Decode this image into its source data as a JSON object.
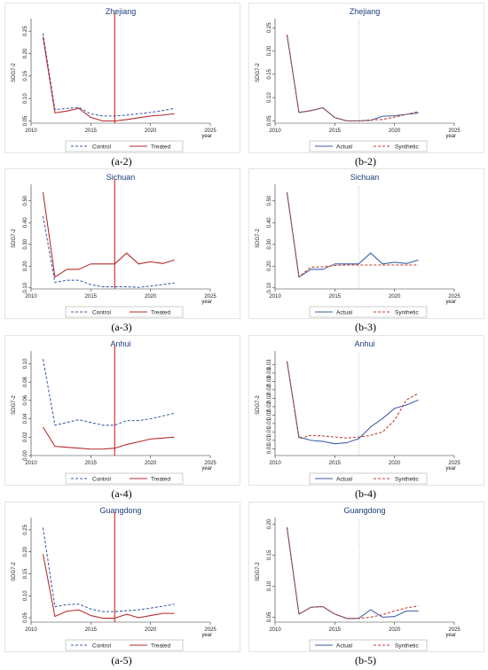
{
  "chart_data": [
    {
      "id": "a-2",
      "caption": "(a-2)",
      "type": "line",
      "title": "Zhejiang",
      "xlabel": "year",
      "ylabel": "SDG7-2",
      "xlim": [
        2010,
        2025
      ],
      "xticks": [
        2010,
        2015,
        2020,
        2025
      ],
      "ylim": [
        0.045,
        0.27
      ],
      "yticks": [
        0.05,
        0.1,
        0.15,
        0.2,
        0.25
      ],
      "ytick_labels": [
        "0.05",
        "0.10",
        "0.15",
        "0.20",
        "0.25"
      ],
      "intervention_year": 2017,
      "intervention_style": "solid-red",
      "x": [
        2011,
        2012,
        2013,
        2014,
        2015,
        2016,
        2017,
        2018,
        2019,
        2020,
        2021,
        2022
      ],
      "series": [
        {
          "name": "Control",
          "color": "#3a5ba8",
          "dash": true,
          "values": [
            0.245,
            0.075,
            0.078,
            0.08,
            0.066,
            0.061,
            0.061,
            0.063,
            0.066,
            0.069,
            0.073,
            0.078
          ]
        },
        {
          "name": "Treated",
          "color": "#b42828",
          "dash": false,
          "values": [
            0.237,
            0.068,
            0.072,
            0.078,
            0.058,
            0.05,
            0.05,
            0.053,
            0.057,
            0.061,
            0.063,
            0.066
          ]
        }
      ],
      "legend_position": "bottom"
    },
    {
      "id": "b-2",
      "caption": "(b-2)",
      "type": "line",
      "title": "Zhejiang",
      "xlabel": "year",
      "ylabel": "SDG7-2",
      "xlim": [
        2010,
        2025
      ],
      "xticks": [
        2010,
        2015,
        2020,
        2025
      ],
      "ylim": [
        0.045,
        0.262
      ],
      "yticks": [
        0.05,
        0.1,
        0.15,
        0.2,
        0.25
      ],
      "ytick_labels": [
        "0.05",
        "0.10",
        "0.15",
        "0.20",
        "0.25"
      ],
      "intervention_year": 2017,
      "intervention_style": "dotted-gray",
      "x": [
        2011,
        2012,
        2013,
        2014,
        2015,
        2016,
        2017,
        2018,
        2019,
        2020,
        2021,
        2022
      ],
      "series": [
        {
          "name": "Actual",
          "color": "#3a5ba8",
          "dash": false,
          "values": [
            0.235,
            0.068,
            0.072,
            0.078,
            0.057,
            0.05,
            0.05,
            0.051,
            0.06,
            0.061,
            0.064,
            0.067
          ]
        },
        {
          "name": "Synthetic",
          "color": "#c0392b",
          "dash": true,
          "values": [
            0.235,
            0.068,
            0.072,
            0.078,
            0.057,
            0.05,
            0.05,
            0.052,
            0.053,
            0.058,
            0.064,
            0.07
          ]
        }
      ],
      "legend_position": "bottom"
    },
    {
      "id": "a-3",
      "caption": "(a-3)",
      "type": "line",
      "title": "Sichuan",
      "xlabel": "year",
      "ylabel": "SDG7-2",
      "xlim": [
        2010,
        2025
      ],
      "xticks": [
        2010,
        2015,
        2020,
        2025
      ],
      "ylim": [
        0.095,
        0.56
      ],
      "yticks": [
        0.1,
        0.2,
        0.3,
        0.4,
        0.5
      ],
      "ytick_labels": [
        "0.10",
        "0.20",
        "0.30",
        "0.40",
        "0.50"
      ],
      "intervention_year": 2017,
      "intervention_style": "solid-red",
      "x": [
        2011,
        2012,
        2013,
        2014,
        2015,
        2016,
        2017,
        2018,
        2019,
        2020,
        2021,
        2022
      ],
      "series": [
        {
          "name": "Control",
          "color": "#3a5ba8",
          "dash": true,
          "values": [
            0.43,
            0.125,
            0.135,
            0.135,
            0.115,
            0.105,
            0.105,
            0.105,
            0.102,
            0.108,
            0.115,
            0.122
          ]
        },
        {
          "name": "Treated",
          "color": "#b42828",
          "dash": false,
          "values": [
            0.54,
            0.15,
            0.185,
            0.185,
            0.21,
            0.21,
            0.21,
            0.26,
            0.21,
            0.22,
            0.212,
            0.228
          ]
        }
      ],
      "legend_position": "bottom"
    },
    {
      "id": "b-3",
      "caption": "(b-3)",
      "type": "line",
      "title": "Sichuan",
      "xlabel": "year",
      "ylabel": "SDG7-2",
      "xlim": [
        2010,
        2025
      ],
      "xticks": [
        2010,
        2015,
        2020,
        2025
      ],
      "ylim": [
        0.095,
        0.56
      ],
      "yticks": [
        0.1,
        0.2,
        0.3,
        0.4,
        0.5
      ],
      "ytick_labels": [
        "0.10",
        "0.20",
        "0.30",
        "0.40",
        "0.50"
      ],
      "intervention_year": 2017,
      "intervention_style": "dotted-gray",
      "x": [
        2011,
        2012,
        2013,
        2014,
        2015,
        2016,
        2017,
        2018,
        2019,
        2020,
        2021,
        2022
      ],
      "series": [
        {
          "name": "Actual",
          "color": "#3a5ba8",
          "dash": false,
          "values": [
            0.54,
            0.15,
            0.185,
            0.185,
            0.21,
            0.21,
            0.21,
            0.26,
            0.21,
            0.218,
            0.212,
            0.228
          ]
        },
        {
          "name": "Synthetic",
          "color": "#c0392b",
          "dash": true,
          "values": [
            0.54,
            0.15,
            0.195,
            0.197,
            0.203,
            0.205,
            0.205,
            0.205,
            0.205,
            0.205,
            0.205,
            0.205
          ]
        }
      ],
      "legend_position": "bottom"
    },
    {
      "id": "a-4",
      "caption": "(a-4)",
      "type": "line",
      "title": "Anhui",
      "xlabel": "year",
      "ylabel": "SDG7-2",
      "xlim": [
        2010,
        2025
      ],
      "xticks": [
        2010,
        2015,
        2020,
        2025
      ],
      "ylim": [
        0.0,
        0.11
      ],
      "yticks": [
        0.0,
        0.02,
        0.04,
        0.06,
        0.08,
        0.1
      ],
      "ytick_labels": [
        "0.00",
        "0.02",
        "0.04",
        "0.06",
        "0.08",
        "0.10"
      ],
      "intervention_year": 2017,
      "intervention_style": "solid-red",
      "x": [
        2011,
        2012,
        2013,
        2014,
        2015,
        2016,
        2017,
        2018,
        2019,
        2020,
        2021,
        2022
      ],
      "series": [
        {
          "name": "Control",
          "color": "#3a5ba8",
          "dash": true,
          "values": [
            0.105,
            0.033,
            0.036,
            0.039,
            0.036,
            0.033,
            0.033,
            0.038,
            0.038,
            0.04,
            0.043,
            0.046
          ]
        },
        {
          "name": "Treated",
          "color": "#b42828",
          "dash": false,
          "values": [
            0.031,
            0.01,
            0.009,
            0.008,
            0.007,
            0.007,
            0.008,
            0.012,
            0.015,
            0.018,
            0.019,
            0.02
          ]
        }
      ],
      "legend_position": "bottom"
    },
    {
      "id": "b-4",
      "caption": "(b-4)",
      "type": "line",
      "title": "Anhui",
      "xlabel": "year",
      "ylabel": "SDG7-2",
      "xlim": [
        2010,
        2025
      ],
      "xticks": [
        2010,
        2015,
        2020,
        2025
      ],
      "ylim": [
        0.003,
        0.033
      ],
      "yticks": [
        0.005,
        0.0075,
        0.01,
        0.0125,
        0.015,
        0.0175,
        0.02,
        0.0225,
        0.025,
        0.0275,
        0.03
      ],
      "ytick_labels": [
        "0.01",
        "0.01",
        "0.01",
        "0.01",
        "0.02",
        "0.02",
        "0.02",
        "0.02",
        "0.03",
        "0.03",
        "0.03"
      ],
      "intervention_year": 2017,
      "intervention_style": "dotted-gray",
      "x": [
        2011,
        2012,
        2013,
        2014,
        2015,
        2016,
        2017,
        2018,
        2019,
        2020,
        2021,
        2022
      ],
      "series": [
        {
          "name": "Actual",
          "color": "#3a5ba8",
          "dash": false,
          "values": [
            0.031,
            0.0085,
            0.0075,
            0.0072,
            0.0065,
            0.0068,
            0.008,
            0.0115,
            0.014,
            0.017,
            0.018,
            0.0195
          ]
        },
        {
          "name": "Synthetic",
          "color": "#c0392b",
          "dash": true,
          "values": [
            0.031,
            0.008,
            0.009,
            0.0088,
            0.0085,
            0.0082,
            0.0085,
            0.009,
            0.01,
            0.0135,
            0.0195,
            0.0215
          ]
        }
      ],
      "legend_position": "bottom"
    },
    {
      "id": "a-5",
      "caption": "(a-5)",
      "type": "line",
      "title": "Guangdong",
      "xlabel": "year",
      "ylabel": "SDG7-2",
      "xlim": [
        2010,
        2025
      ],
      "xticks": [
        2010,
        2015,
        2020,
        2025
      ],
      "ylim": [
        0.04,
        0.27
      ],
      "yticks": [
        0.05,
        0.1,
        0.15,
        0.2,
        0.25
      ],
      "ytick_labels": [
        "0.05",
        "0.10",
        "0.15",
        "0.20",
        "0.25"
      ],
      "intervention_year": 2017,
      "intervention_style": "solid-red",
      "x": [
        2011,
        2012,
        2013,
        2014,
        2015,
        2016,
        2017,
        2018,
        2019,
        2020,
        2021,
        2022
      ],
      "series": [
        {
          "name": "Control",
          "color": "#3a5ba8",
          "dash": true,
          "values": [
            0.255,
            0.075,
            0.08,
            0.081,
            0.07,
            0.064,
            0.064,
            0.066,
            0.068,
            0.072,
            0.076,
            0.081
          ]
        },
        {
          "name": "Treated",
          "color": "#b42828",
          "dash": false,
          "values": [
            0.195,
            0.053,
            0.065,
            0.068,
            0.055,
            0.049,
            0.049,
            0.058,
            0.05,
            0.055,
            0.06,
            0.06
          ]
        }
      ],
      "legend_position": "bottom"
    },
    {
      "id": "b-5",
      "caption": "(b-5)",
      "type": "line",
      "title": "Guangdong",
      "xlabel": "year",
      "ylabel": "SDG7-2",
      "xlim": [
        2010,
        2025
      ],
      "xticks": [
        2010,
        2015,
        2020,
        2025
      ],
      "ylim": [
        0.042,
        0.205
      ],
      "yticks": [
        0.05,
        0.1,
        0.15,
        0.2
      ],
      "ytick_labels": [
        "0.05",
        "0.10",
        "0.15",
        "0.20"
      ],
      "intervention_year": 2017,
      "intervention_style": "dotted-gray",
      "x": [
        2011,
        2012,
        2013,
        2014,
        2015,
        2016,
        2017,
        2018,
        2019,
        2020,
        2021,
        2022
      ],
      "series": [
        {
          "name": "Actual",
          "color": "#3a5ba8",
          "dash": false,
          "values": [
            0.195,
            0.055,
            0.066,
            0.067,
            0.055,
            0.048,
            0.048,
            0.062,
            0.05,
            0.051,
            0.06,
            0.06
          ]
        },
        {
          "name": "Synthetic",
          "color": "#c0392b",
          "dash": true,
          "values": [
            0.195,
            0.055,
            0.066,
            0.067,
            0.055,
            0.048,
            0.048,
            0.05,
            0.054,
            0.06,
            0.065,
            0.068
          ]
        }
      ],
      "legend_position": "bottom"
    }
  ]
}
